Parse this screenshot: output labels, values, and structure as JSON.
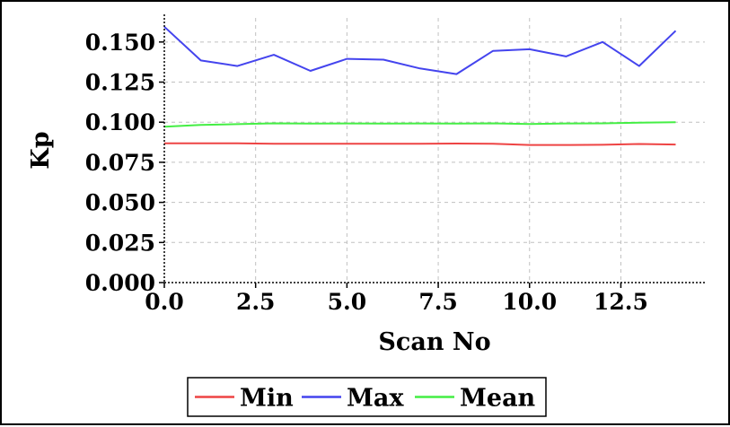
{
  "chart_data": {
    "type": "line",
    "title": "",
    "xlabel": "Scan No",
    "ylabel": "Kp",
    "xlim": [
      0,
      14.8
    ],
    "ylim": [
      0,
      0.165
    ],
    "x_ticks": [
      "0.0",
      "2.5",
      "5.0",
      "7.5",
      "10.0",
      "12.5"
    ],
    "y_ticks": [
      "0.000",
      "0.025",
      "0.050",
      "0.075",
      "0.100",
      "0.125",
      "0.150"
    ],
    "grid": true,
    "legend_position": "bottom",
    "x": [
      0,
      1,
      2,
      3,
      4,
      5,
      6,
      7,
      8,
      9,
      10,
      11,
      12,
      13,
      14
    ],
    "series": [
      {
        "name": "Min",
        "color": "#ee4444",
        "values": [
          0.0868,
          0.0868,
          0.0868,
          0.0866,
          0.0866,
          0.0866,
          0.0866,
          0.0865,
          0.0867,
          0.0866,
          0.0858,
          0.0858,
          0.0859,
          0.0864,
          0.0861
        ]
      },
      {
        "name": "Max",
        "color": "#4444ee",
        "values": [
          0.1595,
          0.1385,
          0.135,
          0.142,
          0.132,
          0.1395,
          0.139,
          0.1335,
          0.13,
          0.1445,
          0.1455,
          0.141,
          0.15,
          0.135,
          0.157
        ]
      },
      {
        "name": "Mean",
        "color": "#44ee44",
        "values": [
          0.0972,
          0.0983,
          0.0988,
          0.0993,
          0.0991,
          0.0992,
          0.0991,
          0.0992,
          0.0991,
          0.0993,
          0.0989,
          0.0992,
          0.0993,
          0.0997,
          0.1
        ]
      }
    ]
  }
}
